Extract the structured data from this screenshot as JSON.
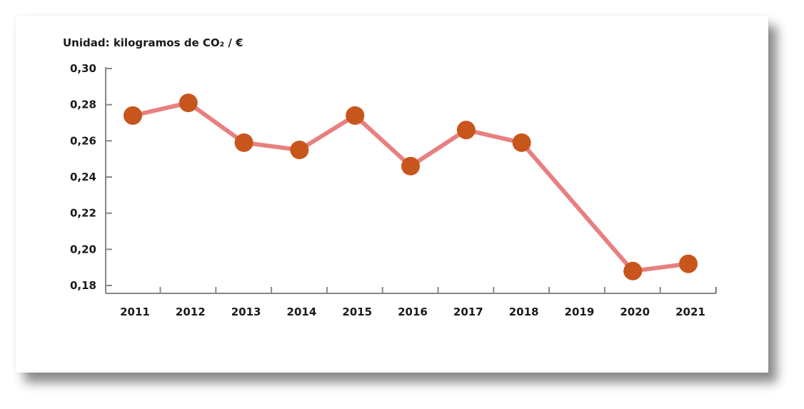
{
  "chart_data": {
    "type": "line",
    "unit_label": "Unidad: kilogramos de CO₂ / €",
    "x": [
      "2011",
      "2012",
      "2013",
      "2014",
      "2015",
      "2016",
      "2017",
      "2018",
      "2019",
      "2020",
      "2021"
    ],
    "values": [
      0.274,
      0.281,
      0.259,
      0.255,
      0.274,
      0.246,
      0.266,
      0.259,
      null,
      0.188,
      0.192
    ],
    "y_ticks": [
      {
        "value": 0.3,
        "label": "0,30"
      },
      {
        "value": 0.28,
        "label": "0,28"
      },
      {
        "value": 0.26,
        "label": "0,26"
      },
      {
        "value": 0.24,
        "label": "0,24"
      },
      {
        "value": 0.22,
        "label": "0,22"
      },
      {
        "value": 0.2,
        "label": "0,20"
      },
      {
        "value": 0.18,
        "label": "0,18"
      }
    ],
    "ylim": [
      0.18,
      0.3
    ],
    "grid": false,
    "legend": "none",
    "line_color": "#e88080",
    "marker_color": "#c8551c"
  }
}
